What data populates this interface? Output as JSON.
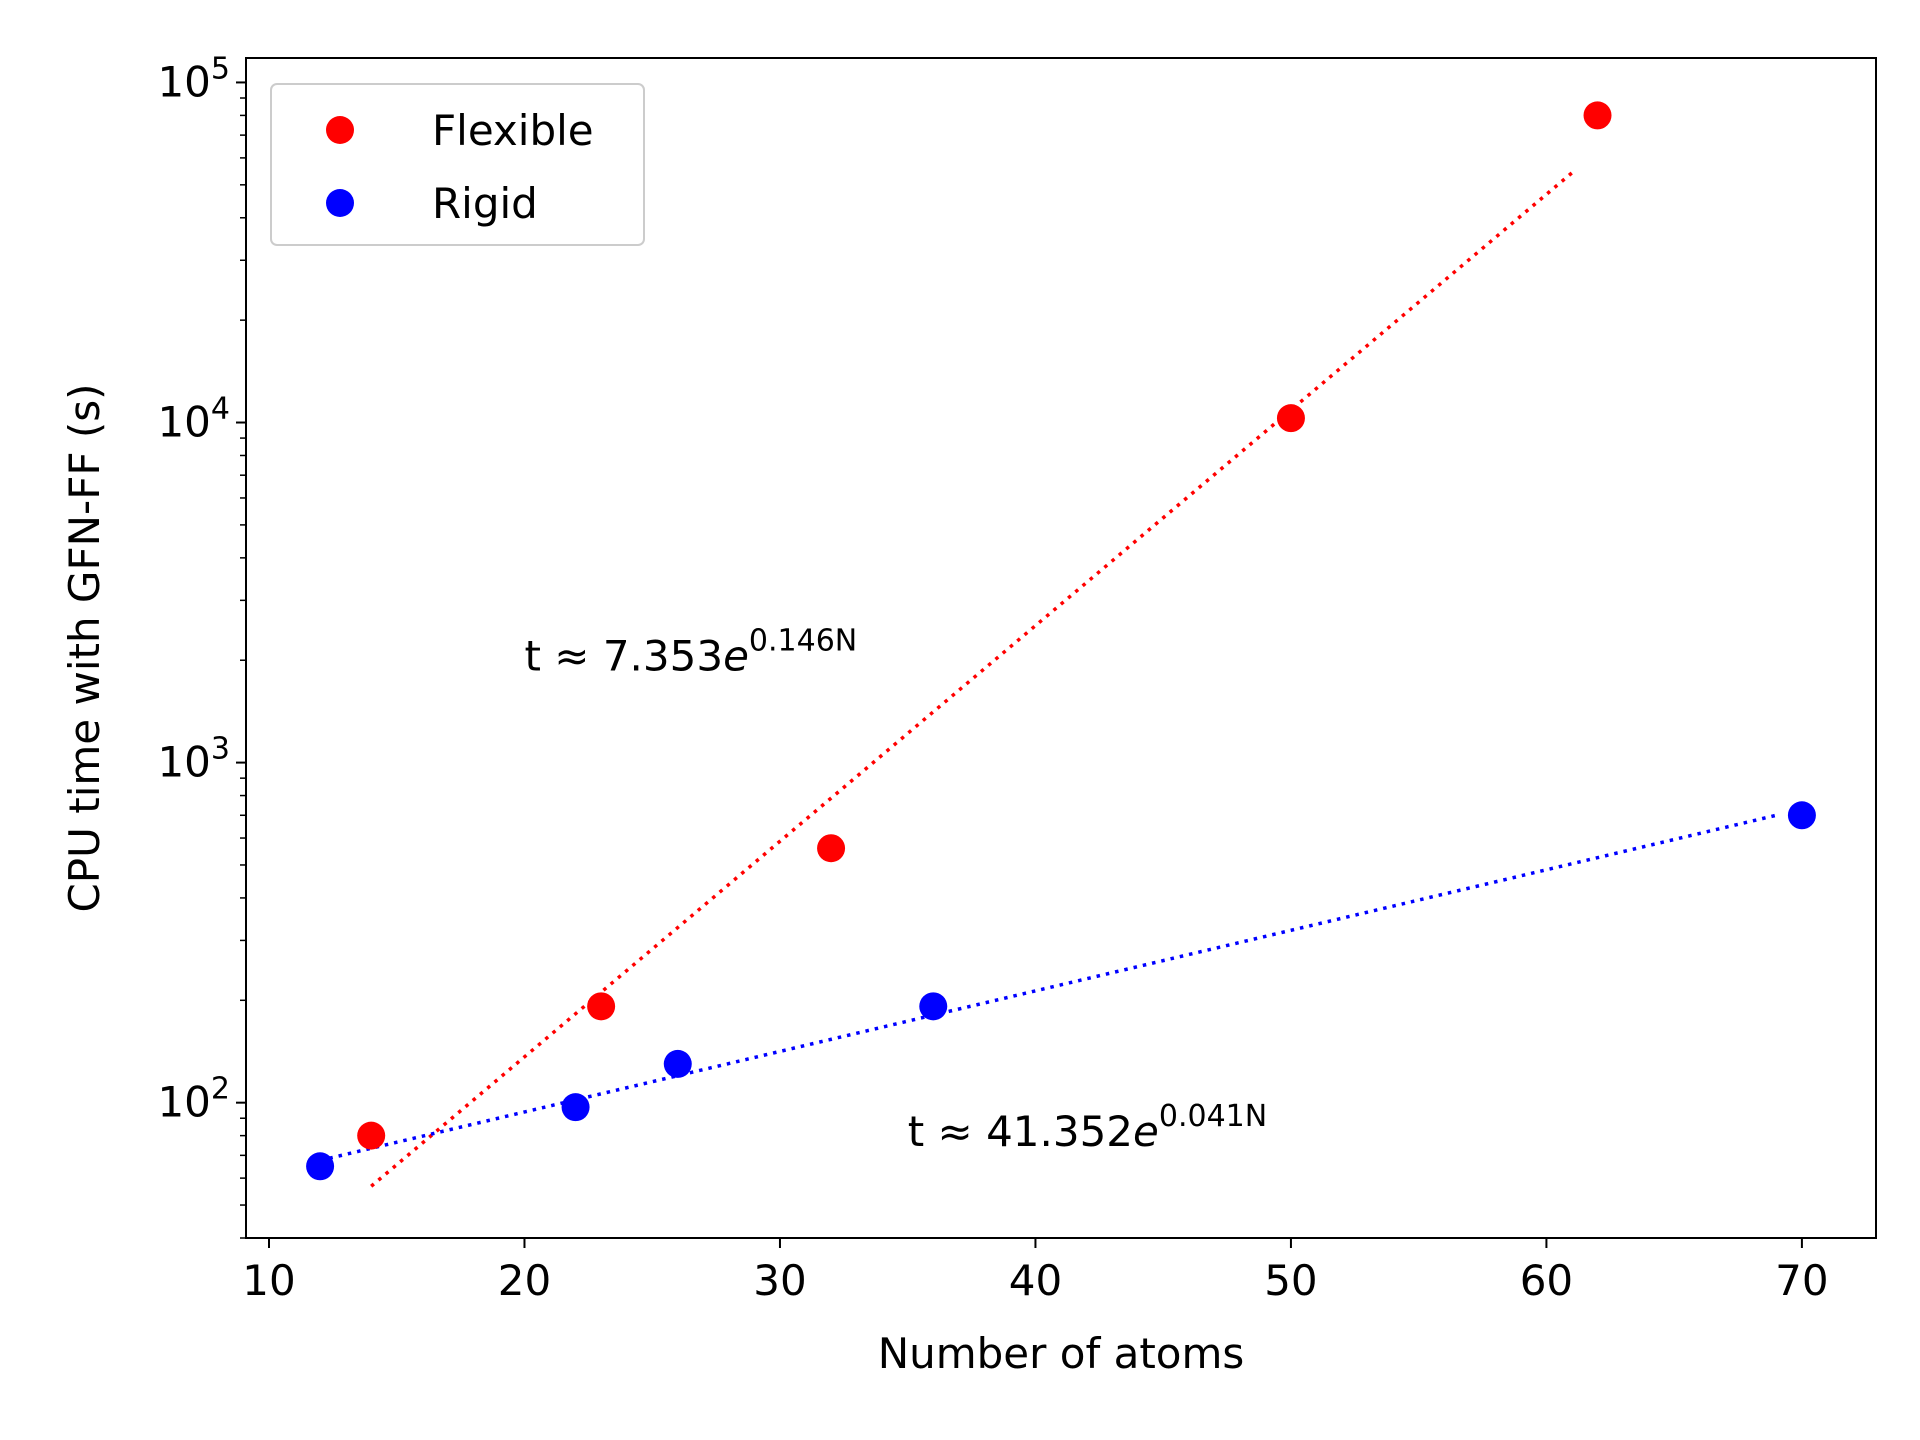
{
  "chart_data": {
    "type": "scatter",
    "xlabel": "Number of atoms",
    "ylabel": "CPU time with GFN-FF (s)",
    "xlim": [
      9.1,
      72.9
    ],
    "ylim": [
      40,
      118000
    ],
    "yscale": "log",
    "x_ticks": [
      10,
      20,
      30,
      40,
      50,
      60,
      70
    ],
    "x_tick_labels": [
      "10",
      "20",
      "30",
      "40",
      "50",
      "60",
      "70"
    ],
    "y_ticks": [
      100,
      1000,
      10000,
      100000
    ],
    "y_tick_labels": [
      {
        "base": "10",
        "exp": "2"
      },
      {
        "base": "10",
        "exp": "3"
      },
      {
        "base": "10",
        "exp": "4"
      },
      {
        "base": "10",
        "exp": "5"
      }
    ],
    "legend_position": "top-left",
    "series": [
      {
        "name": "Flexible",
        "color": "#ff0000",
        "x": [
          14,
          23,
          32,
          50,
          62
        ],
        "y": [
          80,
          192,
          560,
          10300,
          80000
        ],
        "fit": {
          "a": 7.353,
          "b": 0.146,
          "x_range": [
            14,
            61
          ],
          "style": "dotted"
        },
        "annotation": {
          "prefix": "t  ≈  ",
          "coef": "7.353",
          "e": "e",
          "exp": "0.146N",
          "x": 20,
          "y": 2050
        }
      },
      {
        "name": "Rigid",
        "color": "#0000ff",
        "x": [
          12,
          22,
          26,
          36,
          70
        ],
        "y": [
          65,
          97,
          130,
          192,
          700
        ],
        "fit": {
          "a": 41.352,
          "b": 0.041,
          "x_range": [
            12,
            69
          ],
          "style": "dotted"
        },
        "annotation": {
          "prefix": "t  ≈  ",
          "coef": "41.352",
          "e": "e",
          "exp": "0.041N",
          "x": 35,
          "y": 82
        }
      }
    ]
  }
}
